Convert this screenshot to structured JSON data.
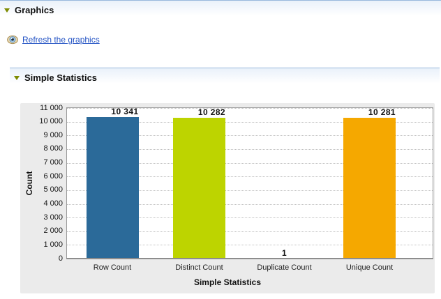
{
  "sections": {
    "graphics": {
      "title": "Graphics",
      "collapse_icon": "triangle-down-icon"
    },
    "simple_statistics": {
      "title": "Simple Statistics",
      "collapse_icon": "triangle-down-icon"
    }
  },
  "refresh_link": {
    "label": "Refresh the graphics",
    "icon": "eye-icon"
  },
  "colors": {
    "header_border": "#98b8dc",
    "header_gradient_top": "#e9f1fa",
    "link": "#2353c4",
    "panel_bg": "#ebebeb",
    "plot_border": "#9a9a9a",
    "gridline": "#c0c0c0",
    "triangle": "#7d8b00"
  },
  "chart_data": {
    "type": "bar",
    "title": "",
    "categories": [
      "Row Count",
      "Distinct Count",
      "Duplicate Count",
      "Unique Count"
    ],
    "values": [
      10341,
      10282,
      1,
      10281
    ],
    "value_labels": [
      "10 341",
      "10 282",
      "1",
      "10 281"
    ],
    "bar_colors": [
      "#2b6a99",
      "#bdd400",
      "#8f8f8f",
      "#f5a800"
    ],
    "xlabel": "Simple Statistics",
    "ylabel": "Count",
    "ylim": [
      0,
      11000
    ],
    "yticks": [
      0,
      1000,
      2000,
      3000,
      4000,
      5000,
      6000,
      7000,
      8000,
      9000,
      10000,
      11000
    ],
    "ytick_labels": [
      "0",
      "1 000",
      "2 000",
      "3 000",
      "4 000",
      "5 000",
      "6 000",
      "7 000",
      "8 000",
      "9 000",
      "10 000",
      "11 000"
    ],
    "grid": "horizontal-dotted",
    "legend": "none"
  }
}
